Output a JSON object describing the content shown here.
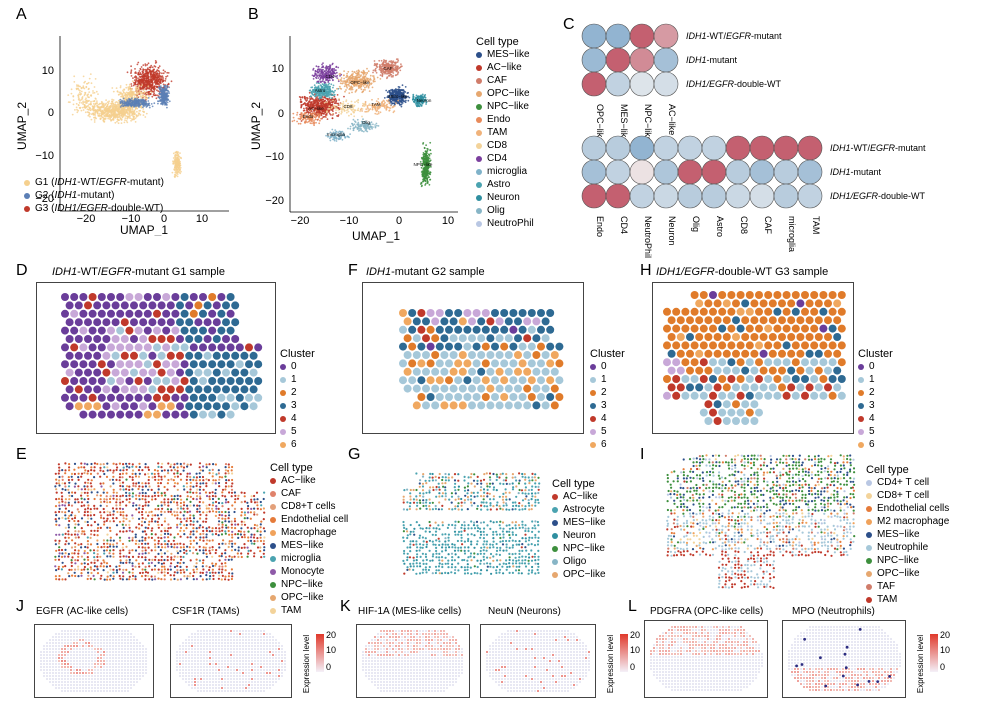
{
  "panels": {
    "A": "A",
    "B": "B",
    "C": "C",
    "D": "D",
    "E": "E",
    "F": "F",
    "G": "G",
    "H": "H",
    "I": "I",
    "J": "J",
    "K": "K",
    "L": "L"
  },
  "umap": {
    "xlabel": "UMAP_1",
    "ylabel": "UMAP_2",
    "a_xticks": [
      "−20",
      "−10",
      "0",
      "10"
    ],
    "a_yticks": [
      "10",
      "0",
      "−10",
      "−20"
    ],
    "b_xticks": [
      "−20",
      "−10",
      "0",
      "10"
    ],
    "b_yticks": [
      "10",
      "0",
      "−10",
      "−20"
    ]
  },
  "panelA": {
    "legend": [
      {
        "pre": "G1 (",
        "ital": "IDH1",
        "post": "-WT/",
        "ital2": "EGFR",
        "post2": "-mutant)",
        "color": "#f5d08e"
      },
      {
        "pre": "G2 (",
        "ital": "IDH1",
        "post": "-mutant)",
        "ital2": "",
        "post2": "",
        "color": "#5b7fb5"
      },
      {
        "pre": "G3 (",
        "ital": "IDH1/EGFR",
        "post": "-double-WT)",
        "ital2": "",
        "post2": "",
        "color": "#c0392b"
      }
    ]
  },
  "panelB": {
    "legend_title": "Cell type",
    "legend": [
      {
        "label": "MES−like",
        "color": "#2c4f8a"
      },
      {
        "label": "AC−like",
        "color": "#c0392b"
      },
      {
        "label": "CAF",
        "color": "#d07c6a"
      },
      {
        "label": "OPC−like",
        "color": "#e6a76f"
      },
      {
        "label": "NPC−like",
        "color": "#3d8f3d"
      },
      {
        "label": "Endo",
        "color": "#e88a5a"
      },
      {
        "label": "TAM",
        "color": "#f0b27a"
      },
      {
        "label": "CD8",
        "color": "#f3d39a"
      },
      {
        "label": "CD4",
        "color": "#7b3f9e"
      },
      {
        "label": "microglia",
        "color": "#7fb2c9"
      },
      {
        "label": "Astro",
        "color": "#4aa3b0"
      },
      {
        "label": "Neuron",
        "color": "#2f8fa0"
      },
      {
        "label": "Olig",
        "color": "#87b5c6"
      },
      {
        "label": "NeutroPhil",
        "color": "#b9c7e3"
      }
    ],
    "cluster_labels": [
      "MES−like",
      "AC−like",
      "CAF",
      "OPC−like",
      "NPC−like",
      "Endo",
      "TAM",
      "CD8",
      "CD4",
      "microglia",
      "Astro",
      "Neuron",
      "Olig"
    ]
  },
  "panelC": {
    "rows": [
      {
        "ital": "IDH1",
        "rest": "-WT/",
        "ital2": "EGFR",
        "rest2": "-mutant"
      },
      {
        "ital": "IDH1",
        "rest": "-mutant",
        "ital2": "",
        "rest2": ""
      },
      {
        "ital": "IDH1/EGFR",
        "rest": "-double-WT",
        "ital2": "",
        "rest2": ""
      }
    ],
    "top_cols": [
      "OPC−like",
      "MES−like",
      "NPC−like",
      "AC−like"
    ],
    "top_vals": [
      [
        -1,
        -1,
        1,
        0.6
      ],
      [
        -0.9,
        1,
        0.7,
        -0.8
      ],
      [
        1,
        -0.5,
        -0.2,
        -0.3
      ]
    ],
    "bottom_cols": [
      "Endo",
      "CD4",
      "NeutroPhil",
      "Neuron",
      "Olig",
      "Astro",
      "CD8",
      "CAF",
      "microglia",
      "TAM"
    ],
    "bottom_vals": [
      [
        -0.6,
        -0.6,
        -1,
        -0.5,
        -0.5,
        -0.5,
        1,
        1,
        1,
        1
      ],
      [
        -0.8,
        -0.5,
        0.1,
        -0.7,
        1,
        1,
        -0.6,
        -0.8,
        -0.6,
        -0.8
      ],
      [
        1,
        1,
        -0.5,
        -0.4,
        -0.6,
        -0.6,
        -0.4,
        -0.3,
        -0.6,
        -0.5
      ]
    ]
  },
  "spatial": {
    "D_title": {
      "ital": "IDH1",
      "rest": "-WT/",
      "ital2": "EGFR",
      "rest2": "-mutant G1 sample"
    },
    "F_title": {
      "ital": "IDH1",
      "rest": "-mutant G2 sample",
      "ital2": "",
      "rest2": ""
    },
    "H_title": {
      "ital": "IDH1/EGFR",
      "rest": "-double-WT G3 sample",
      "ital2": "",
      "rest2": ""
    },
    "cluster_title": "Cluster",
    "clusters": [
      {
        "label": "0",
        "color": "#6a3d9a"
      },
      {
        "label": "1",
        "color": "#a6c8d9"
      },
      {
        "label": "2",
        "color": "#e07b2a"
      },
      {
        "label": "3",
        "color": "#2e6a93"
      },
      {
        "label": "4",
        "color": "#c0392b"
      },
      {
        "label": "5",
        "color": "#c8a8d8"
      },
      {
        "label": "6",
        "color": "#f0a860"
      }
    ]
  },
  "celltypes": {
    "title": "Cell type",
    "E": [
      {
        "label": "AC−like",
        "color": "#c0392b"
      },
      {
        "label": "CAF",
        "color": "#e0826b"
      },
      {
        "label": "CD8+T cells",
        "color": "#e3a07a"
      },
      {
        "label": "Endothelial cell",
        "color": "#e57b3a"
      },
      {
        "label": "Macrophage",
        "color": "#f0a25b"
      },
      {
        "label": "MES−like",
        "color": "#2c4f8a"
      },
      {
        "label": "microglia",
        "color": "#4aa3b0"
      },
      {
        "label": "Monocyte",
        "color": "#8e5aa8"
      },
      {
        "label": "NPC−like",
        "color": "#3d8f3d"
      },
      {
        "label": "OPC−like",
        "color": "#e6a76f"
      },
      {
        "label": "TAM",
        "color": "#f3d39a"
      }
    ],
    "G": [
      {
        "label": "AC−like",
        "color": "#c0392b"
      },
      {
        "label": "Astrocyte",
        "color": "#4aa3b0"
      },
      {
        "label": "MES−like",
        "color": "#2c4f8a"
      },
      {
        "label": "Neuron",
        "color": "#2f8fa0"
      },
      {
        "label": "NPC−like",
        "color": "#3d8f3d"
      },
      {
        "label": "Oligo",
        "color": "#87b5c6"
      },
      {
        "label": "OPC−like",
        "color": "#e6a76f"
      }
    ],
    "I": [
      {
        "label": "CD4+ T cell",
        "color": "#b9c7e3"
      },
      {
        "label": "CD8+ T cell",
        "color": "#f3d39a"
      },
      {
        "label": "Endothelial cells",
        "color": "#e57b3a"
      },
      {
        "label": "M2 macrophage",
        "color": "#f0a25b"
      },
      {
        "label": "MES−like",
        "color": "#2c4f8a"
      },
      {
        "label": "Neutrophile",
        "color": "#a6c8d9"
      },
      {
        "label": "NPC−like",
        "color": "#3d8f3d"
      },
      {
        "label": "OPC−like",
        "color": "#e6a76f"
      },
      {
        "label": "TAF",
        "color": "#d07c6a"
      },
      {
        "label": "TAM",
        "color": "#c0392b"
      }
    ]
  },
  "expression": {
    "J1": "EGFR (AC-like cells)",
    "J2": "CSF1R (TAMs)",
    "K1": "HIF-1A (MES-like cells)",
    "K2": "NeuN (Neurons)",
    "L1": "PDGFRA (OPC-like cells)",
    "L2": "MPO (Neutrophils)",
    "scale_label": "Expression level",
    "scale_ticks": [
      "20",
      "10",
      "0"
    ]
  }
}
